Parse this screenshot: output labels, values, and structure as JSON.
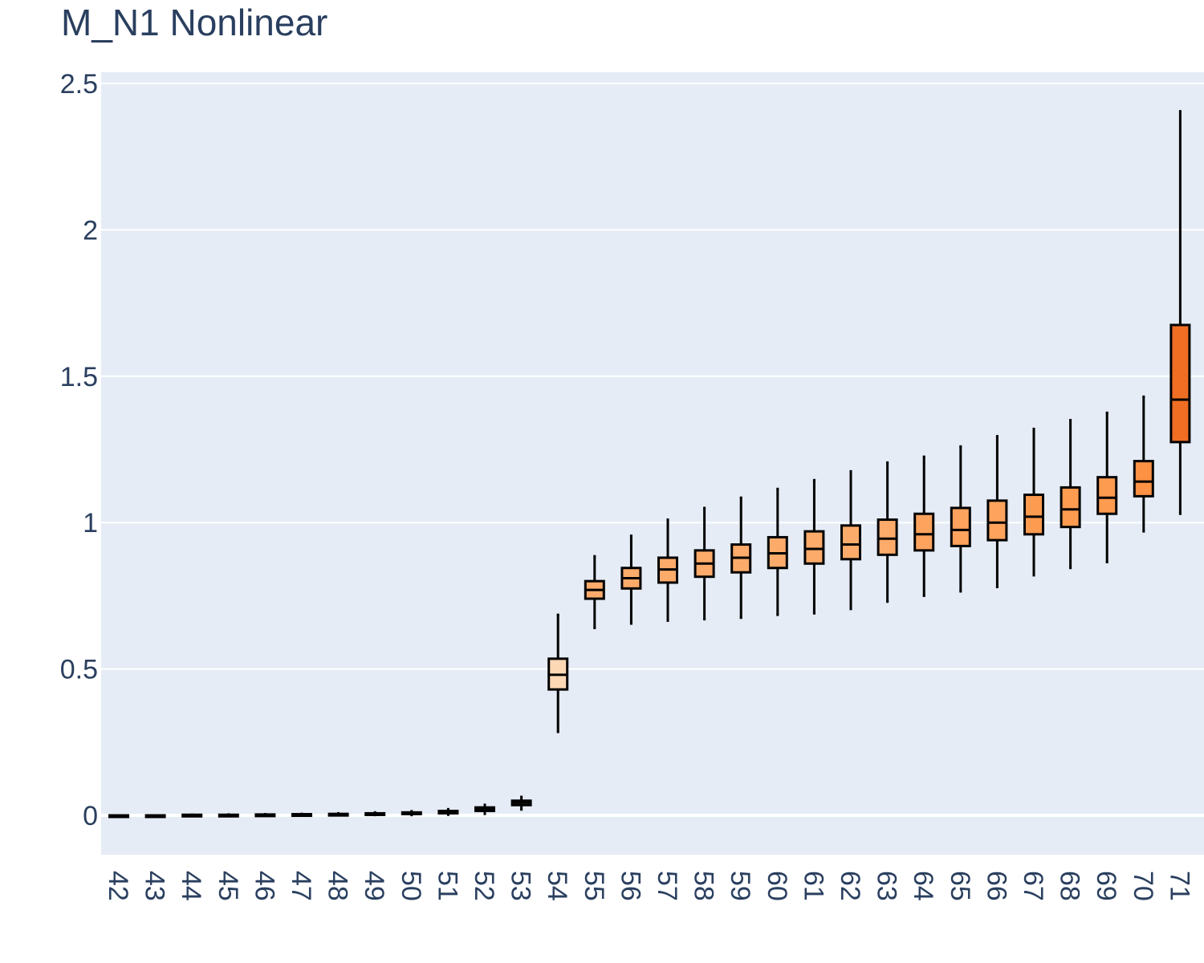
{
  "chart_data": {
    "type": "box",
    "title": "M_N1 Nonlinear",
    "xlabel": "",
    "ylabel": "",
    "ylim": [
      -0.13,
      2.54
    ],
    "y_ticks": [
      0,
      0.5,
      1,
      1.5,
      2,
      2.5
    ],
    "y_tick_labels": [
      "0",
      "0.5",
      "1",
      "1.5",
      "2",
      "2.5"
    ],
    "grid": true,
    "legend": "none",
    "colors": {
      "plot_bg": "#e5ecf6",
      "grid": "#ffffff",
      "text": "#2a3f5f",
      "box_stroke": "#000000"
    },
    "categories": [
      "42",
      "43",
      "44",
      "45",
      "46",
      "47",
      "48",
      "49",
      "50",
      "51",
      "52",
      "53",
      "54",
      "55",
      "56",
      "57",
      "58",
      "59",
      "60",
      "61",
      "62",
      "63",
      "64",
      "65",
      "66",
      "67",
      "68",
      "69",
      "70",
      "71"
    ],
    "boxes": [
      {
        "x": "42",
        "min": 0.0,
        "q1": 0.0,
        "median": 0.0,
        "q3": 0.0,
        "max": 0.0,
        "color": "#ffffff"
      },
      {
        "x": "43",
        "min": 0.0,
        "q1": 0.0,
        "median": 0.0,
        "q3": 0.0,
        "max": 0.0,
        "color": "#ffffff"
      },
      {
        "x": "44",
        "min": 0.0,
        "q1": 0.001,
        "median": 0.001,
        "q3": 0.002,
        "max": 0.002,
        "color": "#ffffff"
      },
      {
        "x": "45",
        "min": 0.0,
        "q1": 0.001,
        "median": 0.001,
        "q3": 0.002,
        "max": 0.003,
        "color": "#ffffff"
      },
      {
        "x": "46",
        "min": 0.0,
        "q1": 0.001,
        "median": 0.002,
        "q3": 0.003,
        "max": 0.004,
        "color": "#ffffff"
      },
      {
        "x": "47",
        "min": 0.0,
        "q1": 0.002,
        "median": 0.003,
        "q3": 0.004,
        "max": 0.005,
        "color": "#ffffff"
      },
      {
        "x": "48",
        "min": 0.0,
        "q1": 0.002,
        "median": 0.004,
        "q3": 0.005,
        "max": 0.007,
        "color": "#ffffff"
      },
      {
        "x": "49",
        "min": 0.001,
        "q1": 0.003,
        "median": 0.005,
        "q3": 0.007,
        "max": 0.01,
        "color": "#ffffff"
      },
      {
        "x": "50",
        "min": 0.001,
        "q1": 0.005,
        "median": 0.007,
        "q3": 0.01,
        "max": 0.014,
        "color": "#ffffff"
      },
      {
        "x": "51",
        "min": 0.002,
        "q1": 0.007,
        "median": 0.011,
        "q3": 0.015,
        "max": 0.021,
        "color": "#ffffff"
      },
      {
        "x": "52",
        "min": 0.005,
        "q1": 0.015,
        "median": 0.021,
        "q3": 0.027,
        "max": 0.036,
        "color": "#ffffff"
      },
      {
        "x": "53",
        "min": 0.02,
        "q1": 0.035,
        "median": 0.043,
        "q3": 0.05,
        "max": 0.063,
        "color": "#ffffff"
      },
      {
        "x": "54",
        "min": 0.285,
        "q1": 0.43,
        "median": 0.48,
        "q3": 0.535,
        "max": 0.685,
        "color": "#fdd8b5"
      },
      {
        "x": "55",
        "min": 0.64,
        "q1": 0.74,
        "median": 0.77,
        "q3": 0.8,
        "max": 0.885,
        "color": "#fdab6a"
      },
      {
        "x": "56",
        "min": 0.655,
        "q1": 0.775,
        "median": 0.81,
        "q3": 0.845,
        "max": 0.955,
        "color": "#fdab6a"
      },
      {
        "x": "57",
        "min": 0.665,
        "q1": 0.795,
        "median": 0.84,
        "q3": 0.88,
        "max": 1.01,
        "color": "#fdab6a"
      },
      {
        "x": "58",
        "min": 0.67,
        "q1": 0.815,
        "median": 0.86,
        "q3": 0.905,
        "max": 1.05,
        "color": "#fdab6a"
      },
      {
        "x": "59",
        "min": 0.675,
        "q1": 0.83,
        "median": 0.88,
        "q3": 0.925,
        "max": 1.085,
        "color": "#fdab6a"
      },
      {
        "x": "60",
        "min": 0.685,
        "q1": 0.845,
        "median": 0.895,
        "q3": 0.95,
        "max": 1.115,
        "color": "#fdab6a"
      },
      {
        "x": "61",
        "min": 0.69,
        "q1": 0.86,
        "median": 0.91,
        "q3": 0.97,
        "max": 1.145,
        "color": "#fdab6a"
      },
      {
        "x": "62",
        "min": 0.705,
        "q1": 0.875,
        "median": 0.925,
        "q3": 0.99,
        "max": 1.175,
        "color": "#fdab6a"
      },
      {
        "x": "63",
        "min": 0.73,
        "q1": 0.89,
        "median": 0.945,
        "q3": 1.01,
        "max": 1.205,
        "color": "#fdab6a"
      },
      {
        "x": "64",
        "min": 0.75,
        "q1": 0.905,
        "median": 0.96,
        "q3": 1.03,
        "max": 1.225,
        "color": "#fda35d"
      },
      {
        "x": "65",
        "min": 0.765,
        "q1": 0.92,
        "median": 0.975,
        "q3": 1.05,
        "max": 1.26,
        "color": "#fda35d"
      },
      {
        "x": "66",
        "min": 0.78,
        "q1": 0.94,
        "median": 1.0,
        "q3": 1.075,
        "max": 1.295,
        "color": "#fda35d"
      },
      {
        "x": "67",
        "min": 0.82,
        "q1": 0.96,
        "median": 1.02,
        "q3": 1.095,
        "max": 1.32,
        "color": "#fd9b50"
      },
      {
        "x": "68",
        "min": 0.845,
        "q1": 0.985,
        "median": 1.045,
        "q3": 1.12,
        "max": 1.35,
        "color": "#fd9b50"
      },
      {
        "x": "69",
        "min": 0.865,
        "q1": 1.03,
        "median": 1.085,
        "q3": 1.155,
        "max": 1.375,
        "color": "#fd9b50"
      },
      {
        "x": "70",
        "min": 0.97,
        "q1": 1.09,
        "median": 1.14,
        "q3": 1.21,
        "max": 1.43,
        "color": "#fd9144"
      },
      {
        "x": "71",
        "min": 1.03,
        "q1": 1.275,
        "median": 1.42,
        "q3": 1.675,
        "max": 2.405,
        "color": "#f06e23"
      }
    ]
  }
}
